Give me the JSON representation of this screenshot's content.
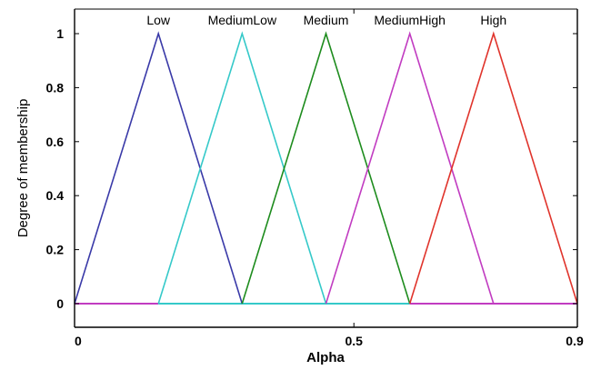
{
  "chart_data": {
    "type": "line",
    "title": "",
    "xlabel": "Alpha",
    "ylabel": "Degree of membership",
    "xlim": [
      0,
      0.9
    ],
    "ylim": [
      0,
      1.1
    ],
    "x_ticks": [
      {
        "value": 0,
        "label": "0"
      },
      {
        "value": 0.5,
        "label": "0.5"
      },
      {
        "value": 0.9,
        "label": "0.9"
      }
    ],
    "y_ticks": [
      {
        "value": 0,
        "label": "0"
      },
      {
        "value": 0.2,
        "label": "0.2"
      },
      {
        "value": 0.4,
        "label": "0.4"
      },
      {
        "value": 0.6,
        "label": "0.6"
      },
      {
        "value": 0.8,
        "label": "0.8"
      },
      {
        "value": 1,
        "label": "1"
      }
    ],
    "grid": false,
    "legend": "labels above peaks",
    "series": [
      {
        "name": "Low",
        "color": "#3a3aa8",
        "x": [
          0,
          0.15,
          0.3
        ],
        "y": [
          0,
          1,
          0
        ]
      },
      {
        "name": "MediumLow",
        "color": "#35c9c9",
        "x": [
          0.15,
          0.3,
          0.45
        ],
        "y": [
          0,
          1,
          0
        ]
      },
      {
        "name": "Medium",
        "color": "#1e8c1e",
        "x": [
          0.3,
          0.45,
          0.6
        ],
        "y": [
          0,
          1,
          0
        ]
      },
      {
        "name": "MediumHigh",
        "color": "#c13cc1",
        "x": [
          0.45,
          0.6,
          0.75
        ],
        "y": [
          0,
          1,
          0
        ]
      },
      {
        "name": "High",
        "color": "#e0342c",
        "x": [
          0.6,
          0.75,
          0.9
        ],
        "y": [
          0,
          1,
          0
        ]
      }
    ],
    "baseline_segments": [
      {
        "color": "#c13cc1",
        "x": [
          0,
          0.15
        ]
      },
      {
        "color": "#35c9c9",
        "x": [
          0.15,
          0.6
        ]
      },
      {
        "color": "#c13cc1",
        "x": [
          0.6,
          0.9
        ]
      }
    ]
  }
}
